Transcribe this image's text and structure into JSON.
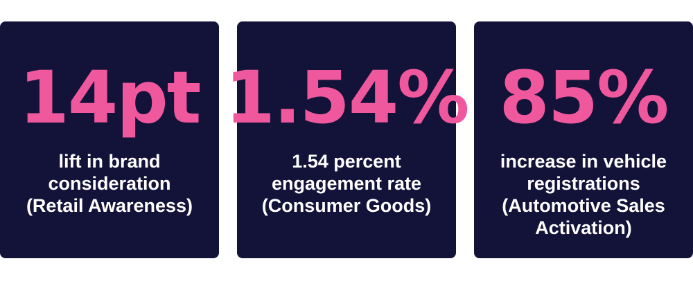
{
  "theme": {
    "card_bg": "#13133a",
    "accent": "#f0589e",
    "text": "#ffffff"
  },
  "stats": [
    {
      "value": "14pt",
      "lines": [
        "lift in brand",
        "consideration",
        "(Retail Awareness)"
      ]
    },
    {
      "value": "1.54%",
      "lines": [
        "1.54 percent",
        "engagement rate",
        "(Consumer Goods)"
      ]
    },
    {
      "value": "85%",
      "lines": [
        "increase in vehicle",
        "registrations",
        "(Automotive Sales",
        "Activation)"
      ]
    }
  ]
}
